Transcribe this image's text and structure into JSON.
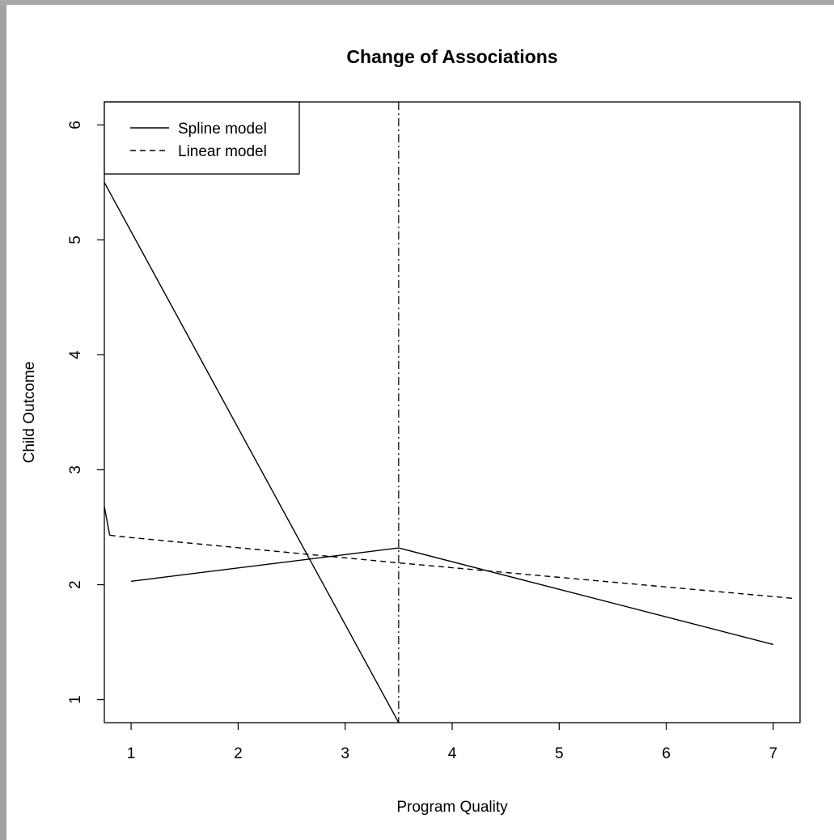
{
  "chart_data": {
    "type": "line",
    "title": "Change of Associations",
    "xlabel": "Program Quality",
    "ylabel": "Child Outcome",
    "xlim": [
      0.75,
      7.25
    ],
    "ylim": [
      0.8,
      6.2
    ],
    "x_ticks": [
      1,
      2,
      3,
      4,
      5,
      6,
      7
    ],
    "y_ticks": [
      1,
      2,
      3,
      4,
      5,
      6
    ],
    "grid": false,
    "legend": {
      "position": "top-left",
      "entries": [
        {
          "label": "Spline model",
          "style": "solid"
        },
        {
          "label": "Linear model",
          "style": "dashed"
        }
      ]
    },
    "series": [
      {
        "name": "Spline model",
        "style": "solid",
        "points": [
          [
            1,
            2.03
          ],
          [
            3.5,
            2.32
          ],
          [
            7,
            1.48
          ]
        ]
      },
      {
        "name": "Linear model",
        "style": "dashed",
        "points": [
          [
            0.8,
            2.43
          ],
          [
            1.0,
            2.41
          ],
          [
            3.5,
            2.19
          ],
          [
            7.2,
            1.88
          ]
        ]
      }
    ],
    "extra_lines": [
      {
        "style": "solid",
        "points": [
          [
            0.75,
            5.5
          ],
          [
            3.5,
            0.8
          ]
        ]
      },
      {
        "style": "solid",
        "points": [
          [
            0.75,
            2.68
          ],
          [
            0.8,
            2.43
          ]
        ]
      }
    ],
    "reference_lines": [
      {
        "axis": "x",
        "value": 3.5,
        "style": "dotdash"
      }
    ]
  }
}
